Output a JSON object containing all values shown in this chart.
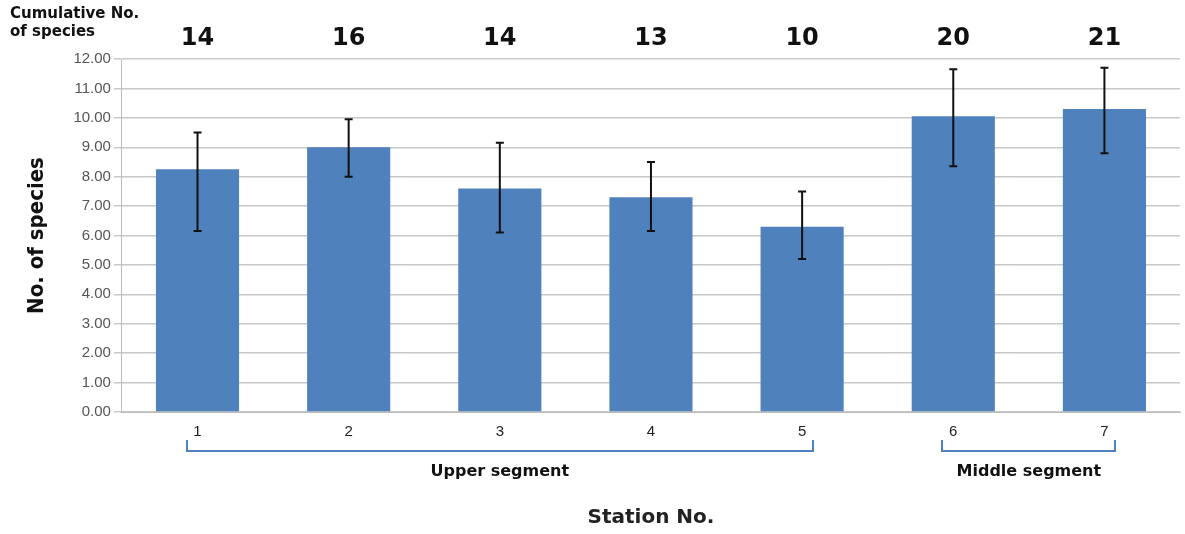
{
  "chart_data": {
    "type": "bar",
    "xlabel": "Station No.",
    "ylabel": "No. of species",
    "categories": [
      "1",
      "2",
      "3",
      "4",
      "5",
      "6",
      "7"
    ],
    "values": [
      8.25,
      9.0,
      7.6,
      7.3,
      6.3,
      10.05,
      10.3
    ],
    "errors": [
      [
        6.15,
        9.5
      ],
      [
        8.0,
        9.95
      ],
      [
        6.1,
        9.15
      ],
      [
        6.15,
        8.5
      ],
      [
        5.2,
        7.5
      ],
      [
        8.35,
        11.65
      ],
      [
        8.8,
        11.7
      ]
    ],
    "color": "#4f81bd",
    "grid": "y",
    "legend": false,
    "ylim": [
      0,
      12
    ],
    "yticks": [
      {
        "value": 0,
        "label": "0.00"
      },
      {
        "value": 1,
        "label": "1.00"
      },
      {
        "value": 2,
        "label": "2.00"
      },
      {
        "value": 3,
        "label": "3.00"
      },
      {
        "value": 4,
        "label": "4.00"
      },
      {
        "value": 5,
        "label": "5.00"
      },
      {
        "value": 6,
        "label": "6.00"
      },
      {
        "value": 7,
        "label": "7.00"
      },
      {
        "value": 8,
        "label": "8.00"
      },
      {
        "value": 9,
        "label": "9.00"
      },
      {
        "value": 10,
        "label": "10.00"
      },
      {
        "value": 11,
        "label": "11.00"
      },
      {
        "value": 12,
        "label": "12.00"
      }
    ],
    "annotations": [
      "Cumulative No. of species",
      "14",
      "16",
      "14",
      "13",
      "10",
      "20",
      "21",
      "Upper segment",
      "Middle segment"
    ]
  }
}
